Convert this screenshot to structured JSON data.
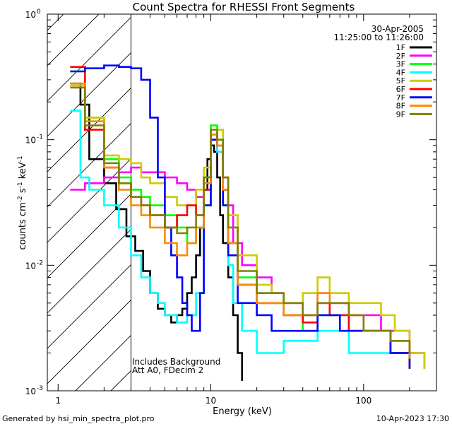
{
  "chart_data": {
    "type": "line",
    "title": "Count Spectra for RHESSI Front Segments",
    "xlabel": "Energy (keV)",
    "ylabel": "counts cm-2 s-1 keV-1",
    "xscale": "log",
    "yscale": "log",
    "xlim": [
      0.85,
      300
    ],
    "ylim": [
      0.001,
      1
    ],
    "x_ticks": [
      {
        "value": 1,
        "label": "1"
      },
      {
        "value": 10,
        "label": "10"
      },
      {
        "value": 100,
        "label": "100"
      }
    ],
    "y_ticks": [
      {
        "value": 1,
        "base": "10",
        "exp": "0"
      },
      {
        "value": 0.1,
        "base": "10",
        "exp": "-1"
      },
      {
        "value": 0.01,
        "base": "10",
        "exp": "-2"
      },
      {
        "value": 0.001,
        "base": "10",
        "exp": "-3"
      }
    ],
    "date": "30-Apr-2005",
    "time_range": "11:25:00 to 11:26:00",
    "annotation_lines": [
      "Includes Background",
      "Att A0, FDecim 2"
    ],
    "attenuator_cutoff_keV": 3,
    "legend_position": "top-right",
    "series": [
      {
        "name": "1F",
        "color": "#000000",
        "points": [
          [
            1.2,
            0.28
          ],
          [
            1.4,
            0.19
          ],
          [
            1.6,
            0.07
          ],
          [
            2.0,
            0.045
          ],
          [
            2.4,
            0.028
          ],
          [
            2.8,
            0.017
          ],
          [
            3.2,
            0.013
          ],
          [
            3.6,
            0.009
          ],
          [
            4.0,
            0.006
          ],
          [
            4.5,
            0.0045
          ],
          [
            5.0,
            0.004
          ],
          [
            5.5,
            0.0035
          ],
          [
            6.0,
            0.004
          ],
          [
            6.5,
            0.0045
          ],
          [
            7.0,
            0.006
          ],
          [
            7.5,
            0.008
          ],
          [
            8.0,
            0.012
          ],
          [
            8.5,
            0.02
          ],
          [
            9.0,
            0.04
          ],
          [
            9.5,
            0.07
          ],
          [
            10.0,
            0.09
          ],
          [
            10.5,
            0.08
          ],
          [
            11.0,
            0.05
          ],
          [
            11.5,
            0.025
          ],
          [
            12.0,
            0.015
          ],
          [
            13.0,
            0.008
          ],
          [
            14.0,
            0.004
          ],
          [
            15.0,
            0.002
          ],
          [
            16.0,
            0.0012
          ]
        ]
      },
      {
        "name": "2F",
        "color": "#ff00ff",
        "points": [
          [
            1.2,
            0.04
          ],
          [
            1.5,
            0.045
          ],
          [
            2.0,
            0.05
          ],
          [
            2.5,
            0.055
          ],
          [
            3.0,
            0.06
          ],
          [
            3.5,
            0.055
          ],
          [
            4.0,
            0.055
          ],
          [
            5.0,
            0.05
          ],
          [
            6.0,
            0.045
          ],
          [
            7.0,
            0.04
          ],
          [
            8.0,
            0.035
          ],
          [
            9.0,
            0.05
          ],
          [
            10.0,
            0.1
          ],
          [
            11.0,
            0.08
          ],
          [
            12.0,
            0.05
          ],
          [
            13.0,
            0.03
          ],
          [
            14.0,
            0.015
          ],
          [
            16.0,
            0.01
          ],
          [
            20.0,
            0.008
          ],
          [
            25.0,
            0.006
          ],
          [
            30.0,
            0.005
          ],
          [
            40.0,
            0.004
          ],
          [
            50.0,
            0.006
          ],
          [
            60.0,
            0.005
          ],
          [
            80.0,
            0.004
          ],
          [
            100.0,
            0.004
          ],
          [
            130.0,
            0.003
          ],
          [
            160.0,
            0.003
          ],
          [
            200.0,
            0.002
          ],
          [
            250.0,
            0.0015
          ]
        ]
      },
      {
        "name": "3F",
        "color": "#00ff00",
        "points": [
          [
            1.2,
            0.35
          ],
          [
            1.5,
            0.15
          ],
          [
            2.0,
            0.07
          ],
          [
            2.5,
            0.05
          ],
          [
            3.0,
            0.04
          ],
          [
            3.5,
            0.035
          ],
          [
            4.0,
            0.03
          ],
          [
            5.0,
            0.025
          ],
          [
            6.0,
            0.02
          ],
          [
            7.0,
            0.015
          ],
          [
            8.0,
            0.02
          ],
          [
            9.0,
            0.05
          ],
          [
            10.0,
            0.13
          ],
          [
            11.0,
            0.1
          ],
          [
            12.0,
            0.04
          ],
          [
            13.0,
            0.015
          ],
          [
            15.0,
            0.008
          ],
          [
            20.0,
            0.005
          ],
          [
            30.0,
            0.004
          ],
          [
            40.0,
            0.003
          ],
          [
            50.0,
            0.004
          ],
          [
            60.0,
            0.004
          ],
          [
            80.0,
            0.003
          ],
          [
            100.0,
            0.003
          ],
          [
            150.0,
            0.002
          ],
          [
            200.0,
            0.0015
          ]
        ]
      },
      {
        "name": "4F",
        "color": "#00ffff",
        "points": [
          [
            1.2,
            0.17
          ],
          [
            1.4,
            0.05
          ],
          [
            1.6,
            0.04
          ],
          [
            2.0,
            0.03
          ],
          [
            2.5,
            0.02
          ],
          [
            3.0,
            0.012
          ],
          [
            3.5,
            0.008
          ],
          [
            4.0,
            0.006
          ],
          [
            4.5,
            0.005
          ],
          [
            5.0,
            0.004
          ],
          [
            6.0,
            0.0035
          ],
          [
            7.0,
            0.004
          ],
          [
            8.0,
            0.006
          ],
          [
            9.0,
            0.03
          ],
          [
            10.0,
            0.1
          ],
          [
            11.0,
            0.08
          ],
          [
            12.0,
            0.03
          ],
          [
            13.0,
            0.01
          ],
          [
            14.0,
            0.005
          ],
          [
            16.0,
            0.003
          ],
          [
            20.0,
            0.002
          ],
          [
            30.0,
            0.0025
          ],
          [
            50.0,
            0.003
          ],
          [
            80.0,
            0.002
          ],
          [
            120.0,
            0.002
          ],
          [
            200.0,
            0.0015
          ]
        ]
      },
      {
        "name": "5F",
        "color": "#cccc00",
        "points": [
          [
            1.2,
            0.27
          ],
          [
            1.5,
            0.15
          ],
          [
            2.0,
            0.075
          ],
          [
            2.5,
            0.07
          ],
          [
            3.0,
            0.065
          ],
          [
            3.5,
            0.05
          ],
          [
            4.0,
            0.045
          ],
          [
            5.0,
            0.035
          ],
          [
            6.0,
            0.03
          ],
          [
            7.0,
            0.03
          ],
          [
            8.0,
            0.04
          ],
          [
            9.0,
            0.06
          ],
          [
            10.0,
            0.1
          ],
          [
            11.0,
            0.12
          ],
          [
            12.0,
            0.05
          ],
          [
            13.0,
            0.025
          ],
          [
            15.0,
            0.012
          ],
          [
            20.0,
            0.007
          ],
          [
            25.0,
            0.006
          ],
          [
            30.0,
            0.005
          ],
          [
            40.0,
            0.006
          ],
          [
            50.0,
            0.008
          ],
          [
            60.0,
            0.006
          ],
          [
            80.0,
            0.005
          ],
          [
            100.0,
            0.005
          ],
          [
            130.0,
            0.004
          ],
          [
            160.0,
            0.003
          ],
          [
            200.0,
            0.002
          ],
          [
            250.0,
            0.0015
          ]
        ]
      },
      {
        "name": "6F",
        "color": "#ff0000",
        "points": [
          [
            1.2,
            0.38
          ],
          [
            1.5,
            0.12
          ],
          [
            2.0,
            0.06
          ],
          [
            2.5,
            0.045
          ],
          [
            3.0,
            0.035
          ],
          [
            3.5,
            0.03
          ],
          [
            4.0,
            0.025
          ],
          [
            5.0,
            0.02
          ],
          [
            6.0,
            0.025
          ],
          [
            7.0,
            0.03
          ],
          [
            8.0,
            0.025
          ],
          [
            9.0,
            0.04
          ],
          [
            10.0,
            0.11
          ],
          [
            11.0,
            0.09
          ],
          [
            12.0,
            0.04
          ],
          [
            13.0,
            0.015
          ],
          [
            15.0,
            0.007
          ],
          [
            20.0,
            0.005
          ],
          [
            30.0,
            0.004
          ],
          [
            40.0,
            0.0035
          ],
          [
            50.0,
            0.005
          ],
          [
            60.0,
            0.004
          ],
          [
            80.0,
            0.003
          ],
          [
            100.0,
            0.003
          ],
          [
            150.0,
            0.002
          ],
          [
            200.0,
            0.0015
          ]
        ]
      },
      {
        "name": "7F",
        "color": "#0000ff",
        "points": [
          [
            1.2,
            0.35
          ],
          [
            1.5,
            0.37
          ],
          [
            2.0,
            0.39
          ],
          [
            2.5,
            0.38
          ],
          [
            3.0,
            0.37
          ],
          [
            3.5,
            0.3
          ],
          [
            4.0,
            0.15
          ],
          [
            4.5,
            0.05
          ],
          [
            5.0,
            0.02
          ],
          [
            5.5,
            0.012
          ],
          [
            6.0,
            0.008
          ],
          [
            6.5,
            0.005
          ],
          [
            7.0,
            0.004
          ],
          [
            7.5,
            0.003
          ],
          [
            8.0,
            0.003
          ],
          [
            8.5,
            0.006
          ],
          [
            9.0,
            0.03
          ],
          [
            10.0,
            0.1
          ],
          [
            11.0,
            0.09
          ],
          [
            12.0,
            0.03
          ],
          [
            13.0,
            0.012
          ],
          [
            15.0,
            0.005
          ],
          [
            20.0,
            0.004
          ],
          [
            25.0,
            0.003
          ],
          [
            30.0,
            0.003
          ],
          [
            40.0,
            0.003
          ],
          [
            50.0,
            0.004
          ],
          [
            70.0,
            0.003
          ],
          [
            100.0,
            0.003
          ],
          [
            150.0,
            0.002
          ],
          [
            200.0,
            0.0015
          ]
        ]
      },
      {
        "name": "8F",
        "color": "#ff8800",
        "points": [
          [
            1.2,
            0.28
          ],
          [
            1.5,
            0.14
          ],
          [
            2.0,
            0.06
          ],
          [
            2.5,
            0.04
          ],
          [
            3.0,
            0.03
          ],
          [
            3.5,
            0.025
          ],
          [
            4.0,
            0.02
          ],
          [
            5.0,
            0.015
          ],
          [
            6.0,
            0.012
          ],
          [
            7.0,
            0.015
          ],
          [
            8.0,
            0.02
          ],
          [
            9.0,
            0.045
          ],
          [
            10.0,
            0.11
          ],
          [
            11.0,
            0.09
          ],
          [
            12.0,
            0.04
          ],
          [
            13.0,
            0.015
          ],
          [
            15.0,
            0.007
          ],
          [
            20.0,
            0.005
          ],
          [
            30.0,
            0.004
          ],
          [
            40.0,
            0.004
          ],
          [
            50.0,
            0.006
          ],
          [
            60.0,
            0.005
          ],
          [
            80.0,
            0.004
          ],
          [
            100.0,
            0.003
          ],
          [
            150.0,
            0.0025
          ],
          [
            200.0,
            0.0018
          ]
        ]
      },
      {
        "name": "9F",
        "color": "#808000",
        "points": [
          [
            1.2,
            0.26
          ],
          [
            1.5,
            0.13
          ],
          [
            2.0,
            0.065
          ],
          [
            2.5,
            0.045
          ],
          [
            3.0,
            0.035
          ],
          [
            3.5,
            0.03
          ],
          [
            4.0,
            0.025
          ],
          [
            5.0,
            0.02
          ],
          [
            6.0,
            0.018
          ],
          [
            7.0,
            0.02
          ],
          [
            8.0,
            0.025
          ],
          [
            9.0,
            0.05
          ],
          [
            10.0,
            0.12
          ],
          [
            11.0,
            0.1
          ],
          [
            12.0,
            0.05
          ],
          [
            13.0,
            0.02
          ],
          [
            15.0,
            0.009
          ],
          [
            20.0,
            0.006
          ],
          [
            30.0,
            0.005
          ],
          [
            40.0,
            0.004
          ],
          [
            50.0,
            0.005
          ],
          [
            60.0,
            0.005
          ],
          [
            80.0,
            0.004
          ],
          [
            100.0,
            0.003
          ],
          [
            150.0,
            0.0025
          ],
          [
            200.0,
            0.002
          ]
        ]
      }
    ]
  },
  "footer": {
    "generated_by": "Generated by hsi_min_spectra_plot.pro",
    "timestamp": "10-Apr-2023 17:30"
  }
}
